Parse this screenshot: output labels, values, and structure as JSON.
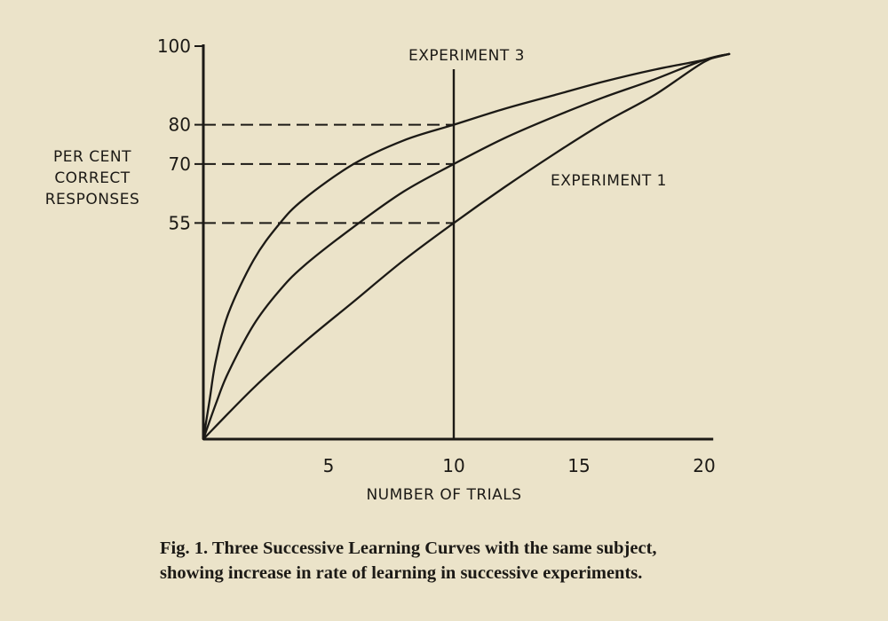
{
  "chart_data": {
    "type": "line",
    "xlabel": "NUMBER OF TRIALS",
    "ylabel": [
      "PER CENT",
      "CORRECT",
      "RESPONSES"
    ],
    "xlim": [
      0,
      21
    ],
    "ylim": [
      0,
      100
    ],
    "x_ticks": [
      5,
      10,
      15,
      20
    ],
    "y_ticks": [
      55,
      70,
      80,
      100
    ],
    "grid": false,
    "series": [
      {
        "name": "EXPERIMENT 1",
        "x": [
          0,
          2,
          4,
          6,
          8,
          10,
          12,
          14,
          16,
          18,
          20,
          21
        ],
        "y": [
          0,
          13,
          24.5,
          35,
          45.5,
          55,
          64,
          72.5,
          80.5,
          87.5,
          96,
          98
        ]
      },
      {
        "name": "",
        "x": [
          0,
          0.5,
          1,
          2,
          3,
          4,
          6,
          8,
          10,
          12,
          14,
          16,
          18,
          20,
          21
        ],
        "y": [
          0,
          9,
          17,
          29,
          37.5,
          44,
          54,
          63,
          70,
          76.5,
          82,
          87,
          91.5,
          96.5,
          98
        ]
      },
      {
        "name": "EXPERIMENT 3",
        "x": [
          0,
          0.25,
          0.5,
          1,
          2,
          3,
          4,
          6,
          8,
          10,
          12,
          14,
          16,
          18,
          20,
          21
        ],
        "y": [
          0,
          10,
          20,
          32,
          45.5,
          54.5,
          61,
          70,
          76,
          80,
          84,
          87.5,
          91,
          94,
          96.5,
          98
        ]
      }
    ],
    "reference_lines": [
      {
        "y": 80,
        "x_end": 10
      },
      {
        "y": 70,
        "x_end": 10
      },
      {
        "y": 55,
        "x_end": 10
      }
    ],
    "vertical_line": {
      "x": 10
    },
    "caption": [
      "Fig. 1. Three Successive Learning Curves with the same subject,",
      "showing increase in rate of learning in successive experiments."
    ]
  }
}
